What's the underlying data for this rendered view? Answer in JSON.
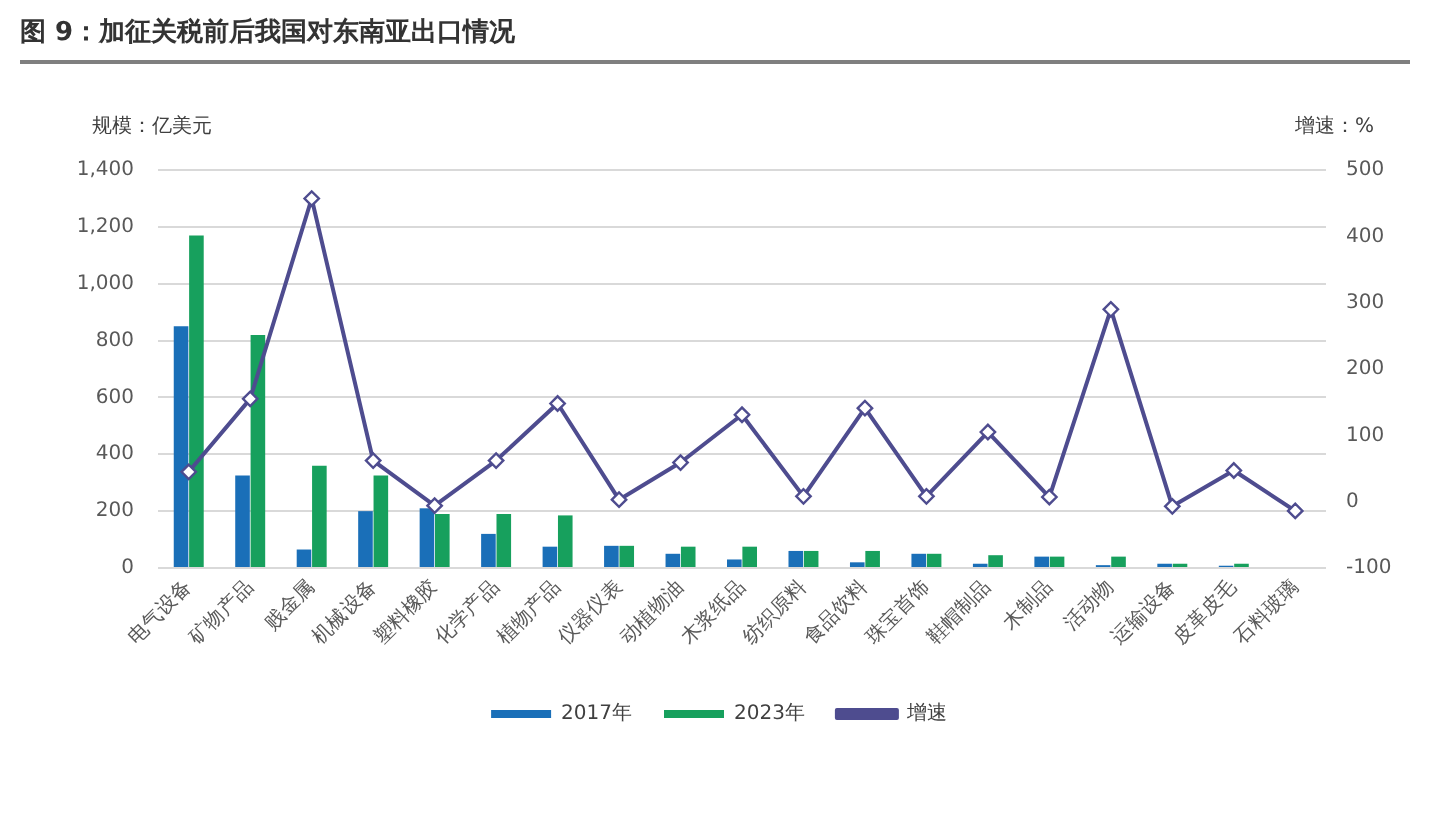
{
  "chart_data": {
    "type": "bar",
    "title": "图 9：加征关税前后我国对东南亚出口情况",
    "ylabel": "规模：亿美元",
    "y2label": "增速：%",
    "categories": [
      "电气设备",
      "矿物产品",
      "贱金属",
      "机械设备",
      "塑料橡胶",
      "化学产品",
      "植物产品",
      "仪器仪表",
      "动植物油",
      "木浆纸品",
      "纺织原料",
      "食品饮料",
      "珠宝首饰",
      "鞋帽制品",
      "木制品",
      "活动物",
      "运输设备",
      "皮革皮毛",
      "石料玻璃"
    ],
    "series": [
      {
        "name": "2017年",
        "color": "#1a6fb8",
        "values": [
          850,
          325,
          65,
          200,
          210,
          120,
          75,
          78,
          50,
          30,
          60,
          20,
          50,
          15,
          40,
          10,
          15,
          8,
          0
        ]
      },
      {
        "name": "2023年",
        "color": "#17a05d",
        "values": [
          1170,
          820,
          360,
          325,
          190,
          190,
          185,
          78,
          75,
          75,
          60,
          60,
          50,
          45,
          40,
          40,
          15,
          15,
          0
        ]
      },
      {
        "name": "增速",
        "type": "line",
        "axis": "y2",
        "color": "#4e4c8f",
        "values": [
          45,
          155,
          457,
          62,
          -6,
          62,
          148,
          3,
          59,
          131,
          8,
          141,
          8,
          105,
          7,
          290,
          -7,
          47,
          -14
        ]
      }
    ],
    "ylim": [
      0,
      1400
    ],
    "yticks": [
      0,
      200,
      400,
      600,
      800,
      {
        "value": 1000,
        "label": "1,000"
      },
      {
        "value": 1200,
        "label": "1,200"
      },
      {
        "value": 1400,
        "label": "1,400"
      }
    ],
    "y2lim": [
      -100,
      500
    ],
    "y2ticks": [
      -100,
      0,
      100,
      200,
      300,
      400,
      500
    ],
    "grid": "y",
    "legend": "bottom",
    "marker": "diamond"
  }
}
